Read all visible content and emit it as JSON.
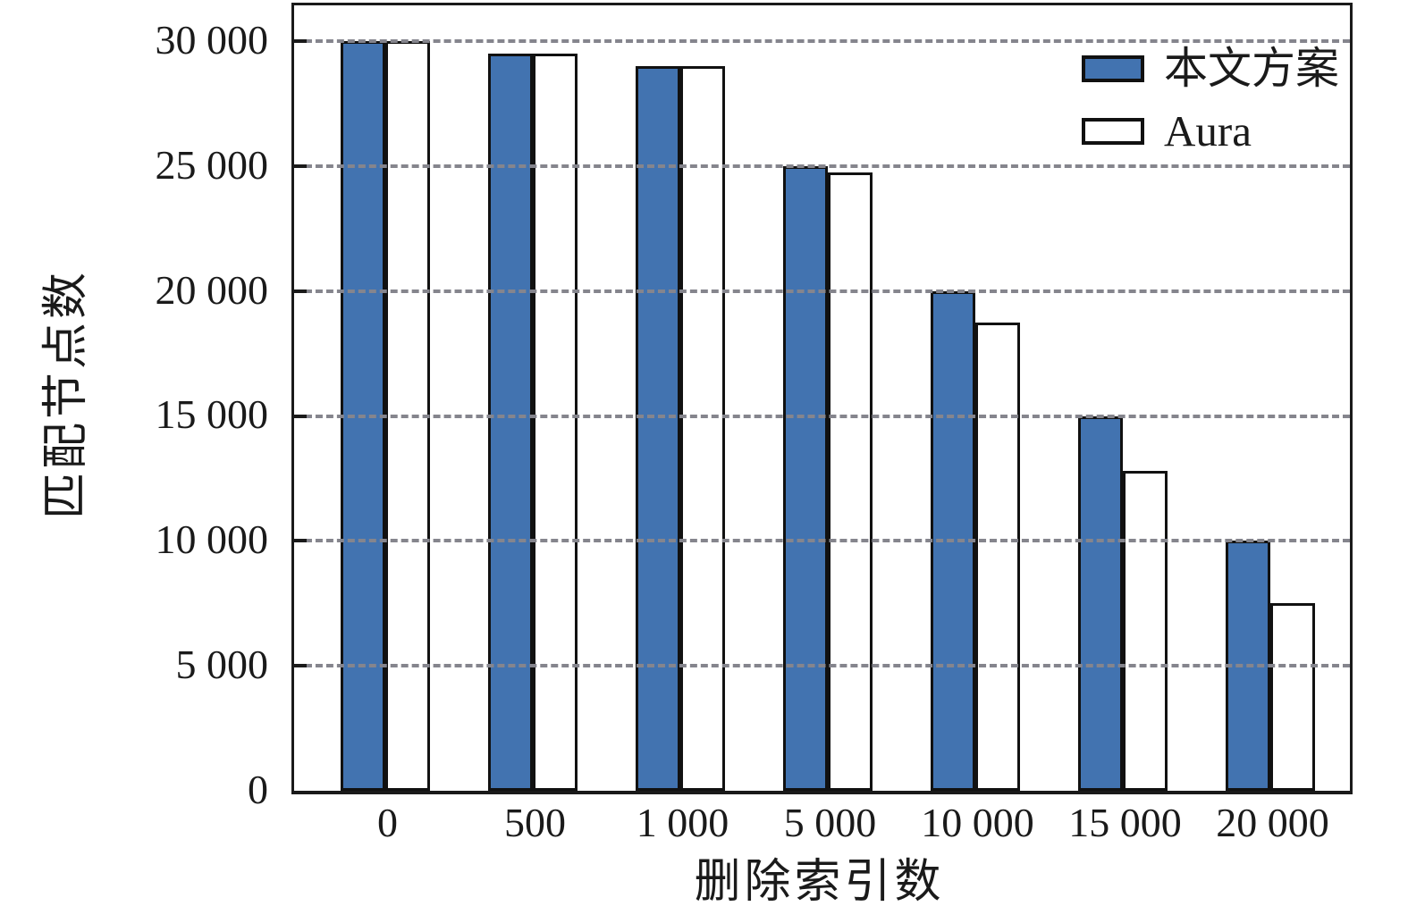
{
  "chart_data": {
    "type": "bar",
    "title": "",
    "xlabel": "删除索引数",
    "ylabel": "匹配节点数",
    "categories": [
      "0",
      "500",
      "1 000",
      "5 000",
      "10 000",
      "15 000",
      "20 000"
    ],
    "series": [
      {
        "name": "本文方案",
        "color": "#4273b0",
        "values": [
          30000,
          29500,
          29000,
          25000,
          20000,
          15000,
          10000
        ]
      },
      {
        "name": "Aura",
        "color": "#ffffff",
        "values": [
          30000,
          29500,
          29000,
          24750,
          18750,
          12800,
          7500
        ]
      }
    ],
    "y_ticks": [
      {
        "value": 30000,
        "label": "30 000"
      },
      {
        "value": 25000,
        "label": "25 000"
      },
      {
        "value": 20000,
        "label": "20 000"
      },
      {
        "value": 15000,
        "label": "15 000"
      },
      {
        "value": 10000,
        "label": "10 000"
      },
      {
        "value": 5000,
        "label": "5 000"
      },
      {
        "value": 0,
        "label": "0"
      }
    ],
    "ylim": [
      0,
      31430
    ],
    "grid": "horizontal-dashed",
    "legend_position": "top-right",
    "colors": {
      "bar_fill_series1": "#4273b0",
      "bar_fill_series2": "#ffffff",
      "bar_border": "#111111",
      "gridline": "#85858d",
      "axis": "#1a1a1a",
      "background": "#ffffff"
    }
  }
}
